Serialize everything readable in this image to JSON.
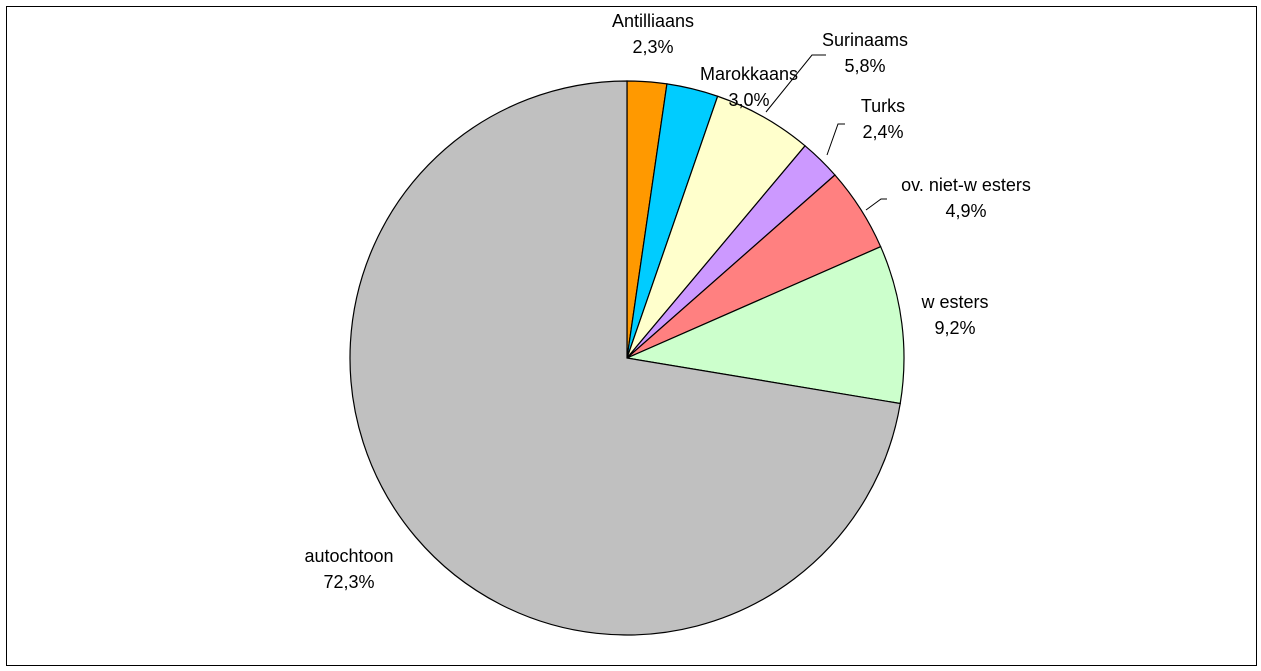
{
  "chart_data": {
    "type": "pie",
    "slices": [
      {
        "label": "Antilliaans",
        "value": 2.3,
        "value_label": "2,3%",
        "color": "#FF9900"
      },
      {
        "label": "Marokkaans",
        "value": 3.0,
        "value_label": "3,0%",
        "color": "#00CCFF"
      },
      {
        "label": "Surinaams",
        "value": 5.8,
        "value_label": "5,8%",
        "color": "#FFFFCC"
      },
      {
        "label": "Turks",
        "value": 2.4,
        "value_label": "2,4%",
        "color": "#CC99FF"
      },
      {
        "label": "ov. niet-w esters",
        "value": 4.9,
        "value_label": "4,9%",
        "color": "#FF8080"
      },
      {
        "label": "w esters",
        "value": 9.2,
        "value_label": "9,2%",
        "color": "#CCFFCC"
      },
      {
        "label": "autochtoon",
        "value": 72.3,
        "value_label": "72,3%",
        "color": "#C0C0C0"
      }
    ],
    "start_angle": "12 o'clock",
    "direction": "clockwise",
    "legend": "none"
  }
}
